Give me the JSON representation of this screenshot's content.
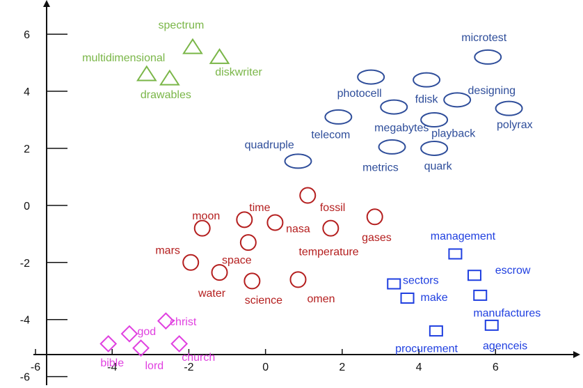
{
  "chart_data": {
    "type": "scatter",
    "title": "",
    "xlabel": "",
    "ylabel": "",
    "xlim": [
      -6.2,
      8.1
    ],
    "ylim": [
      -6.4,
      7.2
    ],
    "x_ticks": [
      -6,
      -4,
      -2,
      0,
      2,
      4,
      6
    ],
    "y_ticks": [
      -6,
      -4,
      -2,
      0,
      2,
      4,
      6
    ],
    "grid": false,
    "legend": "none",
    "series": [
      {
        "marker": "triangle",
        "color": "#7ab648",
        "points": [
          {
            "label": "spectrum",
            "x": -1.9,
            "y": 5.55
          },
          {
            "label": "multidimensional",
            "x": -3.1,
            "y": 4.6
          },
          {
            "label": "diskwriter",
            "x": -1.2,
            "y": 5.2
          },
          {
            "label": "drawables",
            "x": -2.5,
            "y": 4.45
          }
        ]
      },
      {
        "marker": "ellipse",
        "color": "#2e4d9a",
        "points": [
          {
            "label": "microtest",
            "x": 5.8,
            "y": 5.2
          },
          {
            "label": "photocell",
            "x": 2.75,
            "y": 4.5
          },
          {
            "label": "fdisk",
            "x": 4.2,
            "y": 4.4
          },
          {
            "label": "designing",
            "x": 5.0,
            "y": 3.7
          },
          {
            "label": "megabytes",
            "x": 3.35,
            "y": 3.45
          },
          {
            "label": "polyrax",
            "x": 6.35,
            "y": 3.4
          },
          {
            "label": "telecom",
            "x": 1.9,
            "y": 3.1
          },
          {
            "label": "playback",
            "x": 4.4,
            "y": 3.0
          },
          {
            "label": "quadruple",
            "x": 0.85,
            "y": 1.55
          },
          {
            "label": "metrics",
            "x": 3.3,
            "y": 2.05
          },
          {
            "label": "quark",
            "x": 4.4,
            "y": 2.0
          }
        ]
      },
      {
        "marker": "circle",
        "color": "#b41e1e",
        "points": [
          {
            "label": "fossil",
            "x": 1.1,
            "y": 0.35
          },
          {
            "label": "time",
            "x": -0.55,
            "y": -0.5
          },
          {
            "label": "moon",
            "x": -1.65,
            "y": -0.8
          },
          {
            "label": "nasa",
            "x": 0.25,
            "y": -0.6
          },
          {
            "label": "gases",
            "x": 2.85,
            "y": -0.4
          },
          {
            "label": "temperature",
            "x": 1.7,
            "y": -0.8
          },
          {
            "label": "space",
            "x": -0.45,
            "y": -1.3
          },
          {
            "label": "mars",
            "x": -1.95,
            "y": -2.0
          },
          {
            "label": "water",
            "x": -1.2,
            "y": -2.35
          },
          {
            "label": "science",
            "x": -0.35,
            "y": -2.65
          },
          {
            "label": "omen",
            "x": 0.85,
            "y": -2.6
          }
        ]
      },
      {
        "marker": "square",
        "color": "#1f3fe0",
        "points": [
          {
            "label": "management",
            "x": 4.95,
            "y": -1.7
          },
          {
            "label": "escrow",
            "x": 5.45,
            "y": -2.45
          },
          {
            "label": "sectors",
            "x": 3.35,
            "y": -2.75
          },
          {
            "label": "make",
            "x": 3.7,
            "y": -3.25
          },
          {
            "label": "manufactures",
            "x": 5.6,
            "y": -3.15
          },
          {
            "label": "procurement",
            "x": 4.45,
            "y": -4.4
          },
          {
            "label": "agenceis",
            "x": 5.9,
            "y": -4.2
          }
        ]
      },
      {
        "marker": "diamond",
        "color": "#e040e0",
        "points": [
          {
            "label": "christ",
            "x": -2.6,
            "y": -4.05
          },
          {
            "label": "god",
            "x": -3.55,
            "y": -4.5
          },
          {
            "label": "bible",
            "x": -4.1,
            "y": -4.85
          },
          {
            "label": "lord",
            "x": -3.25,
            "y": -5.0
          },
          {
            "label": "church",
            "x": -2.25,
            "y": -4.85
          }
        ]
      }
    ],
    "point_labels": [
      {
        "label": "spectrum",
        "x": -2.2,
        "y": 6.35
      },
      {
        "label": "multidimensional",
        "x": -3.7,
        "y": 5.2
      },
      {
        "label": "diskwriter",
        "x": -0.7,
        "y": 4.7
      },
      {
        "label": "drawables",
        "x": -2.6,
        "y": 3.9
      },
      {
        "label": "microtest",
        "x": 5.7,
        "y": 5.9
      },
      {
        "label": "photocell",
        "x": 2.45,
        "y": 3.95
      },
      {
        "label": "fdisk",
        "x": 4.2,
        "y": 3.75
      },
      {
        "label": "designing",
        "x": 5.9,
        "y": 4.05
      },
      {
        "label": "megabytes",
        "x": 3.55,
        "y": 2.75
      },
      {
        "label": "polyrax",
        "x": 6.5,
        "y": 2.85
      },
      {
        "label": "telecom",
        "x": 1.7,
        "y": 2.5
      },
      {
        "label": "playback",
        "x": 4.9,
        "y": 2.55
      },
      {
        "label": "quadruple",
        "x": 0.1,
        "y": 2.15
      },
      {
        "label": "metrics",
        "x": 3.0,
        "y": 1.35
      },
      {
        "label": "quark",
        "x": 4.5,
        "y": 1.4
      },
      {
        "label": "fossil",
        "x": 1.75,
        "y": -0.05
      },
      {
        "label": "time",
        "x": -0.15,
        "y": -0.05
      },
      {
        "label": "moon",
        "x": -1.55,
        "y": -0.35
      },
      {
        "label": "nasa",
        "x": 0.85,
        "y": -0.8
      },
      {
        "label": "gases",
        "x": 2.9,
        "y": -1.1
      },
      {
        "label": "temperature",
        "x": 1.65,
        "y": -1.6
      },
      {
        "label": "space",
        "x": -0.75,
        "y": -1.9
      },
      {
        "label": "mars",
        "x": -2.55,
        "y": -1.55
      },
      {
        "label": "water",
        "x": -1.4,
        "y": -3.05
      },
      {
        "label": "science",
        "x": -0.05,
        "y": -3.3
      },
      {
        "label": "omen",
        "x": 1.45,
        "y": -3.25
      },
      {
        "label": "management",
        "x": 5.15,
        "y": -1.05
      },
      {
        "label": "escrow",
        "x": 6.45,
        "y": -2.25
      },
      {
        "label": "sectors",
        "x": 4.05,
        "y": -2.6
      },
      {
        "label": "make",
        "x": 4.4,
        "y": -3.2
      },
      {
        "label": "manufactures",
        "x": 6.3,
        "y": -3.75
      },
      {
        "label": "procurement",
        "x": 4.2,
        "y": -5.0
      },
      {
        "label": "agenceis",
        "x": 6.25,
        "y": -4.9
      },
      {
        "label": "christ",
        "x": -2.15,
        "y": -4.05
      },
      {
        "label": "god",
        "x": -3.1,
        "y": -4.4
      },
      {
        "label": "bible",
        "x": -4.0,
        "y": -5.5
      },
      {
        "label": "lord",
        "x": -2.9,
        "y": -5.6
      },
      {
        "label": "church",
        "x": -1.75,
        "y": -5.3
      }
    ]
  }
}
